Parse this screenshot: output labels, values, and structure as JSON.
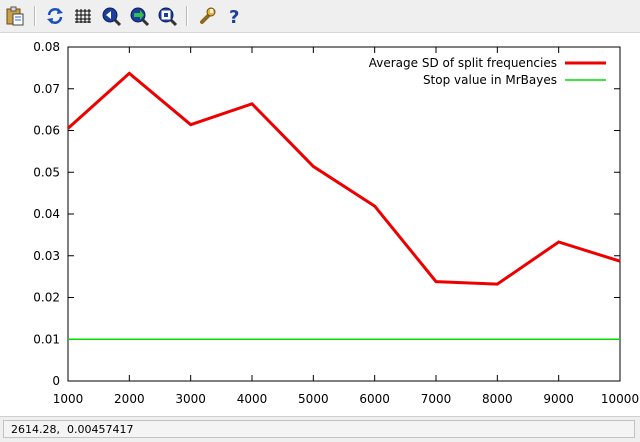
{
  "toolbar": {
    "buttons": [
      {
        "name": "copy-clipboard-button",
        "icon": "clipboard-icon",
        "tooltip": "Copy to clipboard"
      },
      {
        "name": "replot-button",
        "icon": "refresh-icon",
        "tooltip": "Replot"
      },
      {
        "name": "grid-button",
        "icon": "grid-icon",
        "tooltip": "Toggle grid"
      },
      {
        "name": "zoom-previous-button",
        "icon": "zoom-previous-icon",
        "tooltip": "Previous zoom"
      },
      {
        "name": "zoom-next-button",
        "icon": "zoom-next-icon",
        "tooltip": "Next zoom"
      },
      {
        "name": "autoscale-button",
        "icon": "autoscale-icon",
        "tooltip": "Autoscale"
      },
      {
        "name": "options-button",
        "icon": "wrench-icon",
        "tooltip": "Options"
      },
      {
        "name": "help-button",
        "icon": "help-icon",
        "tooltip": "Help"
      }
    ]
  },
  "status": {
    "coords": "2614.28,  0.00457417"
  },
  "chart_data": {
    "type": "line",
    "x": [
      1000,
      2000,
      3000,
      4000,
      5000,
      6000,
      7000,
      8000,
      9000,
      10000
    ],
    "xlim": [
      1000,
      10000
    ],
    "ylim": [
      0,
      0.08
    ],
    "x_ticks": [
      "1000",
      "2000",
      "3000",
      "4000",
      "5000",
      "6000",
      "7000",
      "8000",
      "9000",
      "10000"
    ],
    "y_ticks": [
      "0",
      "0.01",
      "0.02",
      "0.03",
      "0.04",
      "0.05",
      "0.06",
      "0.07",
      "0.08"
    ],
    "grid": false,
    "legend_position": "top-right",
    "series": [
      {
        "name": "Average SD of split frequencies",
        "color": "#ee0000",
        "values": [
          0.0605,
          0.0737,
          0.0614,
          0.0664,
          0.0514,
          0.0419,
          0.0238,
          0.0232,
          0.0333,
          0.0287
        ]
      },
      {
        "name": "Stop value in MrBayes",
        "color": "#00dd00",
        "values": [
          0.01,
          0.01,
          0.01,
          0.01,
          0.01,
          0.01,
          0.01,
          0.01,
          0.01,
          0.01
        ]
      }
    ]
  }
}
